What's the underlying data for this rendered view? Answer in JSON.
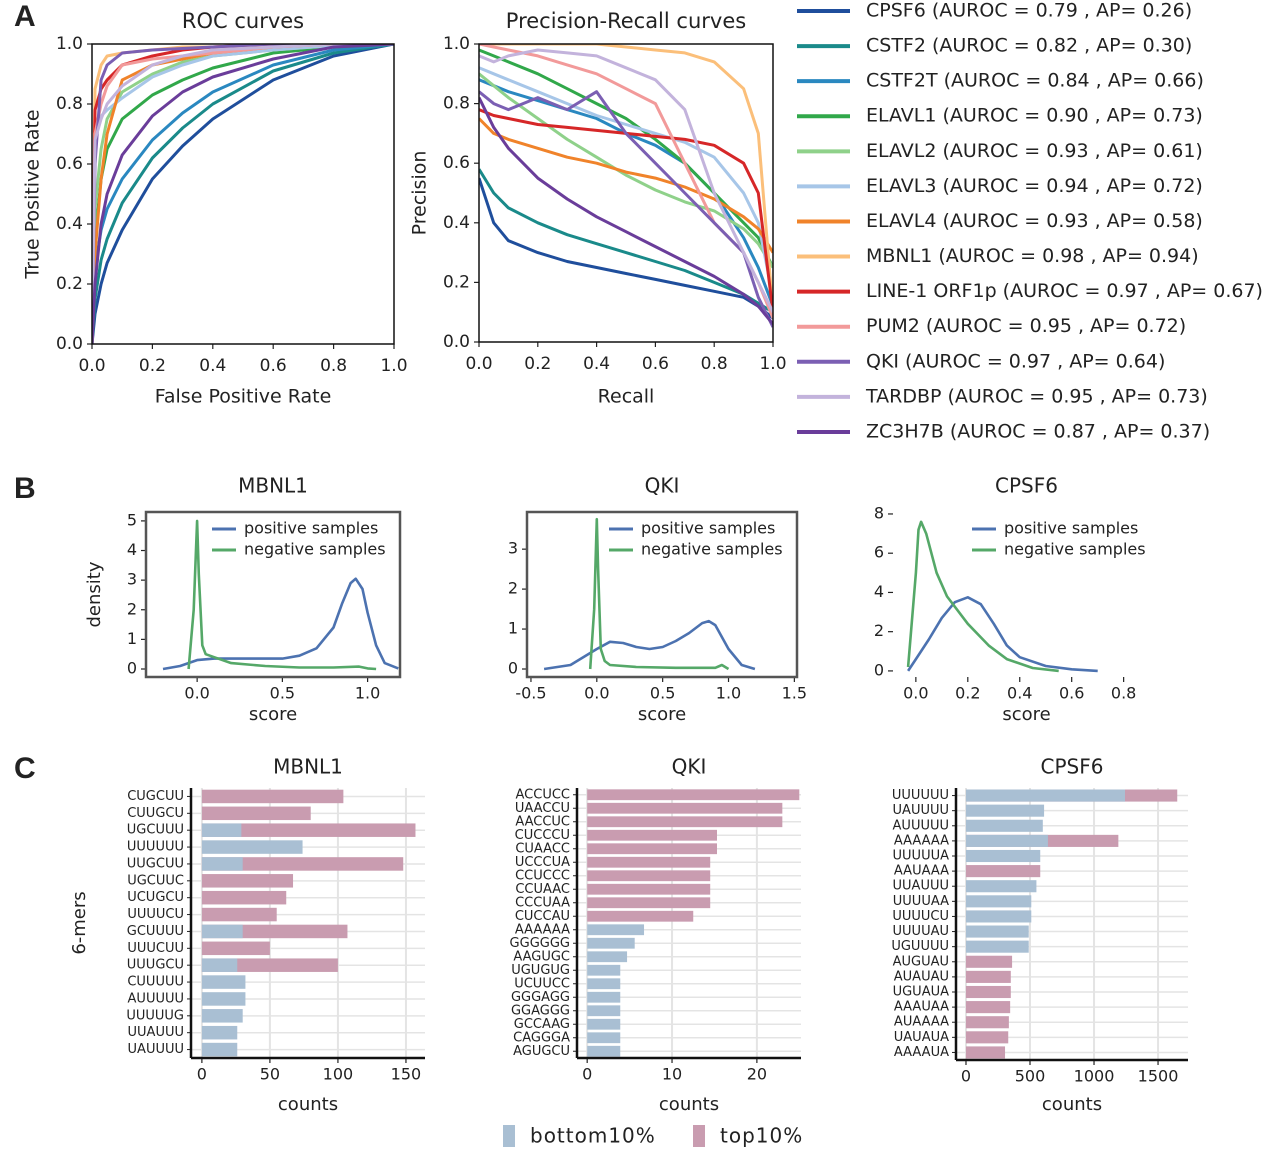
{
  "panels": [
    "A",
    "B",
    "C"
  ],
  "chart_data": [
    {
      "type": "line",
      "title": "ROC curves",
      "xlabel": "False Positive Rate",
      "ylabel": "True Positive Rate",
      "legend": "outside right",
      "x": [
        0,
        0.01,
        0.03,
        0.05,
        0.1,
        0.2,
        0.3,
        0.4,
        0.6,
        0.8,
        1.0
      ],
      "xlim": [
        0,
        1
      ],
      "ylim": [
        0,
        1
      ],
      "xticks": [
        {
          "value": 0,
          "label": "0.0"
        },
        0.2,
        0.4,
        0.6,
        0.8,
        {
          "value": 1,
          "label": "1.0"
        }
      ],
      "yticks": [
        {
          "value": 0,
          "label": "0.0"
        },
        0.2,
        0.4,
        0.6,
        0.8,
        {
          "value": 1,
          "label": "1.0"
        }
      ],
      "series": [
        {
          "name": "CPSF6 (AUROC = 0.79 , AP= 0.26)",
          "color": "#1f4e9c",
          "values": [
            0,
            0.1,
            0.2,
            0.27,
            0.38,
            0.55,
            0.66,
            0.75,
            0.88,
            0.96,
            1
          ]
        },
        {
          "name": "CSTF2 (AUROC = 0.82 , AP= 0.30)",
          "color": "#1a8a8a",
          "values": [
            0,
            0.15,
            0.28,
            0.35,
            0.47,
            0.62,
            0.72,
            0.8,
            0.91,
            0.97,
            1
          ]
        },
        {
          "name": "CSTF2T (AUROC = 0.84 , AP= 0.66)",
          "color": "#2a88c0",
          "values": [
            0,
            0.25,
            0.38,
            0.45,
            0.55,
            0.68,
            0.77,
            0.84,
            0.93,
            0.98,
            1
          ]
        },
        {
          "name": "ELAVL1 (AUROC = 0.90 , AP= 0.73)",
          "color": "#31a84a",
          "values": [
            0,
            0.35,
            0.55,
            0.65,
            0.75,
            0.83,
            0.88,
            0.92,
            0.97,
            0.99,
            1
          ]
        },
        {
          "name": "ELAVL2 (AUROC = 0.93 , AP= 0.61)",
          "color": "#8fd18a",
          "values": [
            0,
            0.45,
            0.65,
            0.75,
            0.84,
            0.9,
            0.94,
            0.96,
            0.98,
            0.995,
            1
          ]
        },
        {
          "name": "ELAVL3 (AUROC = 0.94 , AP= 0.72)",
          "color": "#a7c6e8",
          "values": [
            0,
            0.7,
            0.76,
            0.78,
            0.82,
            0.89,
            0.93,
            0.96,
            0.98,
            0.995,
            1
          ]
        },
        {
          "name": "ELAVL4 (AUROC = 0.93 , AP= 0.58)",
          "color": "#f0832a",
          "values": [
            0,
            0.3,
            0.55,
            0.7,
            0.88,
            0.93,
            0.95,
            0.97,
            0.99,
            1,
            1
          ]
        },
        {
          "name": "MBNL1 (AUROC = 0.98 , AP= 0.94)",
          "color": "#fbbf7a",
          "values": [
            0,
            0.85,
            0.93,
            0.96,
            0.97,
            0.98,
            0.99,
            0.99,
            1,
            1,
            1
          ]
        },
        {
          "name": "LINE-1 ORF1p (AUROC = 0.97 , AP= 0.67)",
          "color": "#d62728",
          "values": [
            0,
            0.78,
            0.85,
            0.88,
            0.93,
            0.96,
            0.98,
            0.99,
            1,
            1,
            1
          ]
        },
        {
          "name": "PUM2 (AUROC = 0.95 , AP= 0.72)",
          "color": "#f29a9a",
          "values": [
            0,
            0.7,
            0.8,
            0.86,
            0.93,
            0.95,
            0.96,
            0.97,
            0.99,
            1,
            1
          ]
        },
        {
          "name": "QKI (AUROC = 0.97 , AP= 0.64)",
          "color": "#7b5fb3",
          "values": [
            0,
            0.6,
            0.88,
            0.93,
            0.97,
            0.98,
            0.985,
            0.99,
            1,
            1,
            1
          ]
        },
        {
          "name": "TARDBP (AUROC = 0.95 , AP= 0.73)",
          "color": "#c3b3dc",
          "values": [
            0,
            0.68,
            0.75,
            0.8,
            0.86,
            0.93,
            0.96,
            0.98,
            0.99,
            1,
            1
          ]
        },
        {
          "name": "ZC3H7B (AUROC = 0.87 , AP= 0.37)",
          "color": "#6a3d9a",
          "values": [
            0,
            0.2,
            0.4,
            0.5,
            0.63,
            0.76,
            0.84,
            0.89,
            0.95,
            0.99,
            1
          ]
        }
      ]
    },
    {
      "type": "line",
      "title": "Precision-Recall curves",
      "xlabel": "Recall",
      "ylabel": "Precision",
      "x": [
        0,
        0.05,
        0.1,
        0.2,
        0.3,
        0.4,
        0.5,
        0.6,
        0.7,
        0.8,
        0.9,
        0.95,
        1.0
      ],
      "xlim": [
        0,
        1
      ],
      "ylim": [
        0,
        1
      ],
      "xticks": [
        {
          "value": 0,
          "label": "0.0"
        },
        0.2,
        0.4,
        0.6,
        0.8,
        {
          "value": 1,
          "label": "1.0"
        }
      ],
      "yticks": [
        {
          "value": 0,
          "label": "0.0"
        },
        0.2,
        0.4,
        0.6,
        0.8,
        {
          "value": 1,
          "label": "1.0"
        }
      ],
      "series": [
        {
          "color": "#1f4e9c",
          "values": [
            0.55,
            0.4,
            0.34,
            0.3,
            0.27,
            0.25,
            0.23,
            0.21,
            0.19,
            0.17,
            0.15,
            0.12,
            0.08
          ]
        },
        {
          "color": "#1a8a8a",
          "values": [
            0.58,
            0.5,
            0.45,
            0.4,
            0.36,
            0.33,
            0.3,
            0.27,
            0.24,
            0.2,
            0.16,
            0.13,
            0.1
          ]
        },
        {
          "color": "#2a88c0",
          "values": [
            0.88,
            0.86,
            0.84,
            0.81,
            0.78,
            0.75,
            0.7,
            0.66,
            0.6,
            0.5,
            0.35,
            0.25,
            0.12
          ]
        },
        {
          "color": "#31a84a",
          "values": [
            0.98,
            0.96,
            0.94,
            0.9,
            0.85,
            0.8,
            0.75,
            0.68,
            0.6,
            0.5,
            0.4,
            0.35,
            0.25
          ]
        },
        {
          "color": "#8fd18a",
          "values": [
            0.9,
            0.86,
            0.82,
            0.75,
            0.68,
            0.62,
            0.56,
            0.51,
            0.47,
            0.44,
            0.38,
            0.33,
            0.25
          ]
        },
        {
          "color": "#a7c6e8",
          "values": [
            0.92,
            0.9,
            0.88,
            0.84,
            0.8,
            0.76,
            0.73,
            0.7,
            0.67,
            0.62,
            0.5,
            0.4,
            0.15
          ]
        },
        {
          "color": "#f0832a",
          "values": [
            0.75,
            0.7,
            0.68,
            0.65,
            0.62,
            0.6,
            0.57,
            0.55,
            0.52,
            0.48,
            0.42,
            0.38,
            0.3
          ]
        },
        {
          "color": "#fbbf7a",
          "values": [
            1,
            1,
            1,
            1,
            1,
            1,
            0.99,
            0.98,
            0.97,
            0.94,
            0.85,
            0.7,
            0.1
          ]
        },
        {
          "color": "#d62728",
          "values": [
            0.78,
            0.76,
            0.75,
            0.73,
            0.72,
            0.71,
            0.7,
            0.69,
            0.68,
            0.66,
            0.6,
            0.5,
            0.1
          ]
        },
        {
          "color": "#f29a9a",
          "values": [
            1,
            0.99,
            0.98,
            0.96,
            0.93,
            0.9,
            0.85,
            0.8,
            0.6,
            0.4,
            0.3,
            0.2,
            0.08
          ]
        },
        {
          "color": "#7b5fb3",
          "values": [
            0.84,
            0.8,
            0.78,
            0.82,
            0.78,
            0.84,
            0.7,
            0.6,
            0.5,
            0.4,
            0.3,
            0.15,
            0.05
          ]
        },
        {
          "color": "#c3b3dc",
          "values": [
            0.96,
            0.94,
            0.96,
            0.98,
            0.97,
            0.96,
            0.92,
            0.88,
            0.78,
            0.5,
            0.3,
            0.2,
            0.1
          ]
        },
        {
          "color": "#6a3d9a",
          "values": [
            0.82,
            0.72,
            0.65,
            0.55,
            0.48,
            0.42,
            0.37,
            0.32,
            0.27,
            0.22,
            0.16,
            0.12,
            0.06
          ]
        }
      ]
    },
    {
      "type": "line",
      "title": "MBNL1",
      "xlabel": "score",
      "ylabel": "density",
      "legend": "upper right",
      "frame": true,
      "xlim": [
        -0.3,
        1.19
      ],
      "ylim": [
        -0.27,
        5.3
      ],
      "xticks": [
        {
          "value": 0,
          "label": "0.0"
        },
        0.5,
        {
          "value": 1,
          "label": "1.0"
        }
      ],
      "yticks": [
        0,
        1,
        2,
        3,
        4,
        5
      ],
      "series": [
        {
          "name": "positive samples",
          "color": "#4c72b0",
          "x": [
            -0.2,
            -0.1,
            0,
            0.1,
            0.3,
            0.5,
            0.6,
            0.7,
            0.8,
            0.85,
            0.9,
            0.93,
            0.97,
            1.0,
            1.05,
            1.1,
            1.18
          ],
          "values": [
            0,
            0.1,
            0.3,
            0.35,
            0.35,
            0.35,
            0.45,
            0.7,
            1.4,
            2.2,
            2.9,
            3.05,
            2.7,
            1.9,
            0.8,
            0.2,
            0.02
          ]
        },
        {
          "name": "negative samples",
          "color": "#55a868",
          "x": [
            -0.05,
            -0.02,
            0,
            0.01,
            0.03,
            0.05,
            0.1,
            0.2,
            0.4,
            0.6,
            0.8,
            0.95,
            1.0,
            1.05
          ],
          "values": [
            0,
            2,
            5.0,
            3.2,
            0.8,
            0.5,
            0.4,
            0.2,
            0.1,
            0.05,
            0.05,
            0.08,
            0.02,
            0
          ]
        }
      ]
    },
    {
      "type": "line",
      "title": "QKI",
      "xlabel": "score",
      "legend": "upper right",
      "frame": true,
      "xlim": [
        -0.53,
        1.52
      ],
      "ylim": [
        -0.2,
        3.93
      ],
      "xticks": [
        -0.5,
        {
          "value": 0,
          "label": "0.0"
        },
        0.5,
        {
          "value": 1,
          "label": "1.0"
        },
        1.5
      ],
      "yticks": [
        0,
        1,
        2,
        3
      ],
      "series": [
        {
          "name": "positive samples",
          "color": "#4c72b0",
          "x": [
            -0.4,
            -0.2,
            0,
            0.1,
            0.2,
            0.3,
            0.4,
            0.5,
            0.6,
            0.7,
            0.8,
            0.85,
            0.9,
            1.0,
            1.1,
            1.2
          ],
          "values": [
            0,
            0.1,
            0.5,
            0.68,
            0.65,
            0.55,
            0.5,
            0.55,
            0.7,
            0.9,
            1.15,
            1.2,
            1.1,
            0.5,
            0.1,
            0
          ]
        },
        {
          "name": "negative samples",
          "color": "#55a868",
          "x": [
            -0.05,
            -0.02,
            0,
            0.01,
            0.03,
            0.06,
            0.1,
            0.3,
            0.6,
            0.9,
            0.95,
            1.0
          ],
          "values": [
            0,
            1.5,
            3.75,
            2.5,
            0.5,
            0.2,
            0.1,
            0.05,
            0.03,
            0.03,
            0.1,
            0
          ]
        }
      ]
    },
    {
      "type": "line",
      "title": "CPSF6",
      "xlabel": "score",
      "legend": "upper right",
      "frame": false,
      "xlim": [
        -0.088,
        0.94
      ],
      "ylim": [
        -0.31,
        8.1
      ],
      "xticks": [
        {
          "value": 0,
          "label": "0.0"
        },
        0.2,
        0.4,
        0.6,
        0.8
      ],
      "yticks": [
        0,
        2,
        4,
        6,
        8
      ],
      "series": [
        {
          "name": "positive samples",
          "color": "#4c72b0",
          "x": [
            -0.03,
            0,
            0.05,
            0.1,
            0.15,
            0.2,
            0.25,
            0.3,
            0.35,
            0.4,
            0.5,
            0.6,
            0.7
          ],
          "values": [
            0,
            0.6,
            1.6,
            2.7,
            3.5,
            3.75,
            3.4,
            2.4,
            1.3,
            0.7,
            0.25,
            0.08,
            0
          ]
        },
        {
          "name": "negative samples",
          "color": "#55a868",
          "x": [
            -0.03,
            0,
            0.01,
            0.02,
            0.04,
            0.08,
            0.12,
            0.2,
            0.28,
            0.35,
            0.45,
            0.55
          ],
          "values": [
            0.2,
            5,
            7.2,
            7.6,
            7,
            5,
            3.8,
            2.4,
            1.3,
            0.6,
            0.15,
            0
          ]
        }
      ]
    },
    {
      "type": "barh",
      "title": "MBNL1",
      "xlabel": "counts",
      "ylabel": "6-mers",
      "legend": "bottom",
      "grid": true,
      "categories": [
        "CUGCUU",
        "CUUGCU",
        "UGCUUU",
        "UUUUUU",
        "UUGCUU",
        "UGCUUC",
        "UCUGCU",
        "UUUUCU",
        "GCUUUU",
        "UUUCUU",
        "UUUGCU",
        "CUUUUU",
        "AUUUUU",
        "UUUUUG",
        "UUAUUU",
        "UAUUUU"
      ],
      "xlim": [
        -8,
        164
      ],
      "xticks": [
        0,
        50,
        100,
        150
      ],
      "series": [
        {
          "name": "bottom10%",
          "color": "#a9bfd3",
          "values": [
            0,
            0,
            29,
            74,
            30,
            0,
            0,
            0,
            30,
            0,
            26,
            32,
            32,
            30,
            26,
            26
          ]
        },
        {
          "name": "top10%",
          "color": "#c99cb0",
          "values": [
            104,
            80,
            157,
            0,
            148,
            67,
            62,
            55,
            107,
            50,
            100,
            0,
            0,
            0,
            0,
            0
          ]
        }
      ]
    },
    {
      "type": "barh",
      "title": "QKI",
      "xlabel": "counts",
      "grid": true,
      "categories": [
        "ACCUCC",
        "UAACCU",
        "AACCUC",
        "CUCCCU",
        "CUAACC",
        "UCCCUA",
        "CCUCCC",
        "CCUAAC",
        "CCCUAA",
        "CUCCAU",
        "AAAAAA",
        "GGGGGG",
        "AAGUGC",
        "UGUGUG",
        "UCUUCC",
        "GGGAGG",
        "GGAGGG",
        "GCCAAG",
        "CAGGGA",
        "AGUGCU"
      ],
      "xlim": [
        -1.2,
        25.2
      ],
      "xticks": [
        0,
        10,
        20
      ],
      "series": [
        {
          "color": "#a9bfd3",
          "values": [
            0,
            0,
            0,
            0,
            0,
            0,
            0,
            0,
            0,
            0,
            6.7,
            5.6,
            4.7,
            3.9,
            3.9,
            3.9,
            3.9,
            3.9,
            3.9,
            3.9
          ]
        },
        {
          "color": "#c99cb0",
          "values": [
            25,
            23,
            23,
            15.3,
            15.3,
            14.5,
            14.5,
            14.5,
            14.5,
            12.5,
            0,
            0,
            0,
            0,
            0,
            0,
            0,
            0,
            0,
            0
          ]
        }
      ]
    },
    {
      "type": "barh",
      "title": "CPSF6",
      "xlabel": "counts",
      "grid": true,
      "categories": [
        "UUUUUU",
        "UAUUUU",
        "AUUUUU",
        "AAAAAA",
        "UUUUUA",
        "AAUAAA",
        "UUAUUU",
        "UUUUAA",
        "UUUUCU",
        "UUUUAU",
        "UGUUUU",
        "AUGUAU",
        "AUAUAU",
        "UGUAUA",
        "AAAUAA",
        "AUAAAA",
        "UAUAUA",
        "AAAAUA"
      ],
      "xlim": [
        -78,
        1734
      ],
      "xticks": [
        0,
        500,
        1000,
        1500
      ],
      "series": [
        {
          "color": "#a9bfd3",
          "values": [
            1242,
            610,
            600,
            640,
            580,
            0,
            550,
            510,
            510,
            490,
            490,
            0,
            0,
            0,
            0,
            0,
            0,
            0
          ]
        },
        {
          "color": "#c99cb0",
          "values": [
            1650,
            0,
            0,
            1190,
            0,
            580,
            0,
            0,
            0,
            0,
            0,
            360,
            350,
            350,
            345,
            335,
            330,
            305
          ]
        }
      ]
    }
  ]
}
